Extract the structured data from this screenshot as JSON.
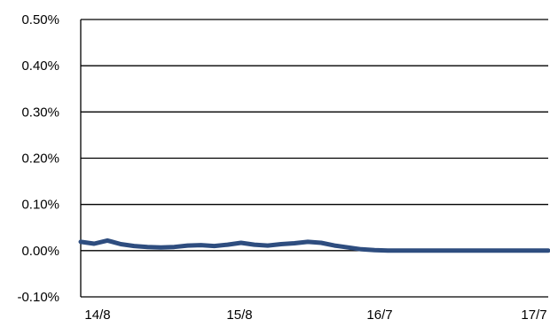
{
  "chart_data": {
    "type": "line",
    "title": "",
    "xlabel": "",
    "ylabel": "",
    "ylim": [
      -0.001,
      0.005
    ],
    "y_ticks": [
      {
        "value": 0.005,
        "label": "0.50%"
      },
      {
        "value": 0.004,
        "label": "0.40%"
      },
      {
        "value": 0.003,
        "label": "0.30%"
      },
      {
        "value": 0.002,
        "label": "0.20%"
      },
      {
        "value": 0.001,
        "label": "0.10%"
      },
      {
        "value": 0.0,
        "label": "0.00%"
      },
      {
        "value": -0.001,
        "label": "-0.10%"
      }
    ],
    "x_ticks": [
      "14/8",
      "15/8",
      "16/7",
      "17/7"
    ],
    "xlim": [
      "2014-08",
      "2017-07"
    ],
    "grid": "horizontal",
    "legend": "none",
    "series": [
      {
        "color": "#2E4D7F",
        "x": [
          "2014-08",
          "2014-09",
          "2014-10",
          "2014-11",
          "2014-12",
          "2015-01",
          "2015-02",
          "2015-03",
          "2015-04",
          "2015-05",
          "2015-06",
          "2015-07",
          "2015-08",
          "2015-09",
          "2015-10",
          "2015-11",
          "2015-12",
          "2016-01",
          "2016-02",
          "2016-03",
          "2016-04",
          "2016-05",
          "2016-06",
          "2016-07",
          "2016-08",
          "2016-09",
          "2016-10",
          "2016-11",
          "2016-12",
          "2017-01",
          "2017-02",
          "2017-03",
          "2017-04",
          "2017-05",
          "2017-06",
          "2017-07"
        ],
        "values": [
          0.00019,
          0.00015,
          0.00022,
          0.00014,
          0.0001,
          8e-05,
          7e-05,
          8e-05,
          0.00011,
          0.00012,
          0.0001,
          0.00013,
          0.00017,
          0.00013,
          0.00011,
          0.00014,
          0.00016,
          0.00019,
          0.00017,
          0.00011,
          7e-05,
          3e-05,
          1e-05,
          0.0,
          0.0,
          0.0,
          0.0,
          0.0,
          0.0,
          0.0,
          0.0,
          0.0,
          0.0,
          0.0,
          0.0,
          0.0
        ]
      }
    ]
  }
}
